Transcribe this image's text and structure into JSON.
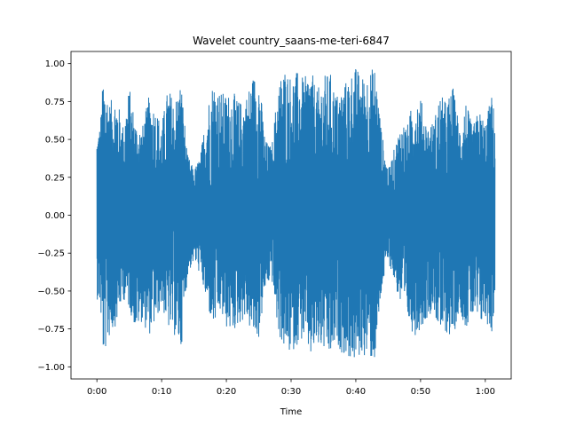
{
  "chart_data": {
    "type": "line",
    "title": "Wavelet country_saans-me-teri-6847",
    "xlabel": "Time",
    "ylabel": "",
    "xlim": [
      -4,
      64
    ],
    "ylim": [
      -1.08,
      1.08
    ],
    "x_ticks": [
      {
        "value": 0,
        "label": "0:00"
      },
      {
        "value": 10,
        "label": "0:10"
      },
      {
        "value": 20,
        "label": "0:20"
      },
      {
        "value": 30,
        "label": "0:30"
      },
      {
        "value": 40,
        "label": "0:40"
      },
      {
        "value": 50,
        "label": "0:50"
      },
      {
        "value": 60,
        "label": "1:00"
      }
    ],
    "y_ticks": [
      {
        "value": 1.0,
        "label": "1.00"
      },
      {
        "value": 0.75,
        "label": "0.75"
      },
      {
        "value": 0.5,
        "label": "0.50"
      },
      {
        "value": 0.25,
        "label": "0.25"
      },
      {
        "value": 0.0,
        "label": "0.00"
      },
      {
        "value": -0.25,
        "label": "−0.25"
      },
      {
        "value": -0.5,
        "label": "−0.50"
      },
      {
        "value": -0.75,
        "label": "−0.75"
      },
      {
        "value": -1.0,
        "label": "−1.00"
      }
    ],
    "grid": false,
    "series": [
      {
        "color": "#1f77b4",
        "envelope": {
          "x": [
            0.0,
            0.5,
            1.0,
            2.0,
            3.0,
            4.0,
            5.0,
            6.0,
            7.0,
            8.0,
            9.0,
            10.0,
            11.0,
            12.0,
            13.0,
            14.0,
            15.0,
            16.0,
            17.0,
            18.0,
            19.0,
            20.0,
            21.0,
            22.0,
            23.0,
            24.0,
            25.0,
            26.0,
            27.0,
            28.0,
            29.0,
            30.0,
            31.0,
            32.0,
            33.0,
            34.0,
            35.0,
            36.0,
            37.0,
            38.0,
            39.0,
            40.0,
            41.0,
            42.0,
            43.0,
            44.0,
            45.0,
            46.0,
            47.0,
            48.0,
            49.0,
            50.0,
            51.0,
            52.0,
            53.0,
            54.0,
            55.0,
            56.0,
            57.0,
            58.0,
            59.0,
            60.0,
            61.0,
            61.5
          ],
          "upper": [
            0.55,
            0.6,
            0.93,
            0.75,
            0.8,
            0.6,
            0.85,
            0.62,
            0.58,
            0.78,
            0.72,
            0.6,
            0.85,
            0.75,
            0.9,
            0.4,
            0.3,
            0.4,
            0.72,
            0.9,
            0.82,
            0.8,
            0.82,
            0.75,
            0.78,
            0.92,
            0.95,
            0.5,
            0.45,
            0.88,
            0.98,
            0.92,
            0.95,
            0.9,
            0.98,
            0.82,
            0.92,
            0.95,
            0.8,
            0.85,
            0.93,
            0.98,
            0.92,
            0.95,
            0.99,
            0.55,
            0.3,
            0.45,
            0.62,
            0.6,
            0.8,
            0.78,
            0.6,
            0.62,
            0.8,
            0.75,
            0.85,
            0.6,
            0.76,
            0.58,
            0.7,
            0.62,
            0.8,
            0.65
          ],
          "lower": [
            -0.55,
            -0.6,
            -0.94,
            -0.8,
            -0.72,
            -0.55,
            -0.62,
            -0.76,
            -0.7,
            -0.8,
            -0.72,
            -0.6,
            -0.75,
            -0.8,
            -0.9,
            -0.4,
            -0.3,
            -0.4,
            -0.6,
            -0.75,
            -0.65,
            -0.75,
            -0.78,
            -0.72,
            -0.68,
            -0.8,
            -0.82,
            -0.5,
            -0.42,
            -0.78,
            -0.9,
            -0.92,
            -0.85,
            -0.82,
            -0.95,
            -0.88,
            -0.9,
            -0.96,
            -0.85,
            -0.92,
            -0.95,
            -0.98,
            -0.92,
            -0.95,
            -0.97,
            -0.5,
            -0.3,
            -0.45,
            -0.62,
            -0.7,
            -0.8,
            -0.75,
            -0.68,
            -0.62,
            -0.8,
            -0.78,
            -0.82,
            -0.62,
            -0.75,
            -0.68,
            -0.74,
            -0.7,
            -0.78,
            -0.6
          ]
        }
      }
    ]
  }
}
